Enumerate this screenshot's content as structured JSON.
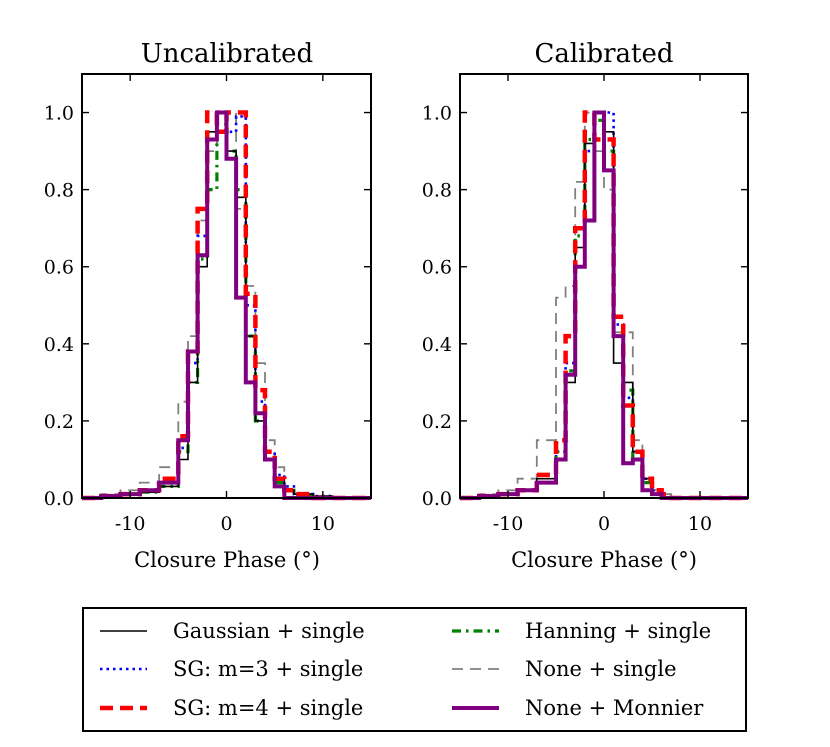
{
  "chart_data": [
    {
      "type": "histogram",
      "title": "Uncalibrated",
      "xlabel": "Closure Phase (°)",
      "ylabel": "",
      "xlim": [
        -15,
        15
      ],
      "ylim": [
        0,
        1.1
      ],
      "xticks": [
        -10,
        0,
        10
      ],
      "xtick_labels": [
        "-10",
        "0",
        "10"
      ],
      "yticks": [
        0.0,
        0.2,
        0.4,
        0.6,
        0.8,
        1.0
      ],
      "ytick_labels": [
        "0.0",
        "0.2",
        "0.4",
        "0.6",
        "0.8",
        "1.0"
      ],
      "series": [
        {
          "key": "gaussian",
          "bin_edges": [
            -15,
            -13,
            -11,
            -9,
            -7,
            -5,
            -4,
            -3,
            -2,
            -1,
            0,
            1,
            2,
            3,
            4,
            5,
            6,
            7,
            9,
            11,
            13,
            15
          ],
          "values": [
            0.0,
            0.005,
            0.01,
            0.015,
            0.03,
            0.1,
            0.3,
            0.6,
            0.95,
            1.0,
            0.9,
            0.78,
            0.42,
            0.2,
            0.1,
            0.05,
            0.02,
            0.01,
            0.005,
            0.0,
            0.0
          ]
        },
        {
          "key": "sg3",
          "bin_edges": [
            -15,
            -13,
            -11,
            -9,
            -7,
            -5,
            -4,
            -3,
            -2,
            -1,
            0,
            1,
            2,
            3,
            4,
            5,
            6,
            7,
            9,
            11,
            13,
            15
          ],
          "values": [
            0.0,
            0.005,
            0.01,
            0.02,
            0.04,
            0.13,
            0.35,
            0.68,
            0.93,
            1.0,
            0.95,
            0.99,
            0.5,
            0.25,
            0.12,
            0.06,
            0.03,
            0.01,
            0.005,
            0.0,
            0.0
          ]
        },
        {
          "key": "sg4",
          "bin_edges": [
            -15,
            -13,
            -11,
            -9,
            -7,
            -5,
            -4,
            -3,
            -2,
            -1,
            0,
            1,
            2,
            3,
            4,
            5,
            6,
            7,
            9,
            11,
            13,
            15
          ],
          "values": [
            0.0,
            0.005,
            0.01,
            0.02,
            0.05,
            0.16,
            0.38,
            0.75,
            1.0,
            0.95,
            1.0,
            1.0,
            0.53,
            0.28,
            0.12,
            0.05,
            0.02,
            0.01,
            0.0,
            0.0,
            0.0
          ]
        },
        {
          "key": "hanning",
          "bin_edges": [
            -15,
            -13,
            -11,
            -9,
            -7,
            -5,
            -4,
            -3,
            -2,
            -1,
            0,
            1,
            2,
            3,
            4,
            5,
            6,
            7,
            9,
            11,
            13,
            15
          ],
          "values": [
            0.0,
            0.005,
            0.01,
            0.015,
            0.03,
            0.12,
            0.3,
            0.62,
            0.8,
            0.97,
            0.9,
            0.8,
            0.42,
            0.2,
            0.1,
            0.04,
            0.02,
            0.005,
            0.0,
            0.0,
            0.0
          ]
        },
        {
          "key": "none_single",
          "bin_edges": [
            -15,
            -13,
            -11,
            -9,
            -7,
            -5,
            -4,
            -3,
            -2,
            -1,
            0,
            1,
            2,
            3,
            4,
            5,
            6,
            7,
            9,
            11,
            13,
            15
          ],
          "values": [
            0.0,
            0.01,
            0.02,
            0.04,
            0.08,
            0.25,
            0.42,
            0.72,
            0.9,
            0.95,
            1.0,
            0.75,
            0.55,
            0.35,
            0.15,
            0.08,
            0.02,
            0.01,
            0.0,
            0.0,
            0.0
          ]
        },
        {
          "key": "monnier",
          "bin_edges": [
            -15,
            -13,
            -11,
            -9,
            -7,
            -5,
            -4,
            -3,
            -2,
            -1,
            0,
            1,
            2,
            3,
            4,
            5,
            6,
            7,
            9,
            11,
            13,
            15
          ],
          "values": [
            0.0,
            0.005,
            0.01,
            0.02,
            0.04,
            0.15,
            0.38,
            0.63,
            0.93,
            1.0,
            0.88,
            0.52,
            0.3,
            0.22,
            0.1,
            0.03,
            0.0,
            0.0,
            0.0,
            0.0,
            0.0
          ]
        }
      ]
    },
    {
      "type": "histogram",
      "title": "Calibrated",
      "xlabel": "Closure Phase (°)",
      "ylabel": "",
      "xlim": [
        -15,
        15
      ],
      "ylim": [
        0,
        1.1
      ],
      "xticks": [
        -10,
        0,
        10
      ],
      "xtick_labels": [
        "-10",
        "0",
        "10"
      ],
      "yticks": [
        0.0,
        0.2,
        0.4,
        0.6,
        0.8,
        1.0
      ],
      "ytick_labels": [
        "0.0",
        "0.2",
        "0.4",
        "0.6",
        "0.8",
        "1.0"
      ],
      "series": [
        {
          "key": "gaussian",
          "bin_edges": [
            -15,
            -13,
            -11,
            -9,
            -7,
            -5,
            -4,
            -3,
            -2,
            -1,
            0,
            1,
            2,
            3,
            4,
            5,
            6,
            7,
            9,
            11,
            13,
            15
          ],
          "values": [
            0.0,
            0.005,
            0.01,
            0.02,
            0.05,
            0.1,
            0.3,
            0.65,
            0.92,
            1.0,
            0.95,
            0.35,
            0.3,
            0.12,
            0.05,
            0.01,
            0.0,
            0.0,
            0.0,
            0.0,
            0.0
          ]
        },
        {
          "key": "sg3",
          "bin_edges": [
            -15,
            -13,
            -11,
            -9,
            -7,
            -5,
            -4,
            -3,
            -2,
            -1,
            0,
            1,
            2,
            3,
            4,
            5,
            6,
            7,
            9,
            11,
            13,
            15
          ],
          "values": [
            0.0,
            0.005,
            0.01,
            0.02,
            0.04,
            0.12,
            0.35,
            0.6,
            0.9,
            1.0,
            1.0,
            0.45,
            0.26,
            0.12,
            0.05,
            0.02,
            0.0,
            0.0,
            0.0,
            0.0,
            0.0
          ]
        },
        {
          "key": "sg4",
          "bin_edges": [
            -15,
            -13,
            -11,
            -9,
            -7,
            -5,
            -4,
            -3,
            -2,
            -1,
            0,
            1,
            2,
            3,
            4,
            5,
            6,
            7,
            9,
            11,
            13,
            15
          ],
          "values": [
            0.0,
            0.005,
            0.01,
            0.02,
            0.06,
            0.15,
            0.42,
            0.7,
            1.0,
            0.93,
            0.93,
            0.47,
            0.24,
            0.12,
            0.05,
            0.02,
            0.01,
            0.0,
            0.0,
            0.0,
            0.0
          ]
        },
        {
          "key": "hanning",
          "bin_edges": [
            -15,
            -13,
            -11,
            -9,
            -7,
            -5,
            -4,
            -3,
            -2,
            -1,
            0,
            1,
            2,
            3,
            4,
            5,
            6,
            7,
            9,
            11,
            13,
            15
          ],
          "values": [
            0.0,
            0.005,
            0.01,
            0.02,
            0.04,
            0.12,
            0.33,
            0.68,
            0.93,
            0.98,
            0.9,
            0.42,
            0.28,
            0.1,
            0.04,
            0.01,
            0.0,
            0.0,
            0.0,
            0.0,
            0.0
          ]
        },
        {
          "key": "none_single",
          "bin_edges": [
            -15,
            -13,
            -11,
            -9,
            -7,
            -5,
            -4,
            -3,
            -2,
            -1,
            0,
            1,
            2,
            3,
            4,
            5,
            6,
            7,
            9,
            11,
            13,
            15
          ],
          "values": [
            0.0,
            0.01,
            0.02,
            0.05,
            0.15,
            0.52,
            0.55,
            0.82,
            1.0,
            0.9,
            0.8,
            0.43,
            0.43,
            0.15,
            0.05,
            0.02,
            0.01,
            0.0,
            0.0,
            0.0,
            0.0
          ]
        },
        {
          "key": "monnier",
          "bin_edges": [
            -15,
            -13,
            -11,
            -9,
            -7,
            -5,
            -4,
            -3,
            -2,
            -1,
            0,
            1,
            2,
            3,
            4,
            5,
            6,
            7,
            9,
            11,
            13,
            15
          ],
          "values": [
            0.0,
            0.005,
            0.01,
            0.02,
            0.04,
            0.1,
            0.32,
            0.6,
            0.72,
            1.0,
            0.85,
            0.42,
            0.09,
            0.1,
            0.02,
            0.01,
            0.0,
            0.0,
            0.0,
            0.0,
            0.0
          ]
        }
      ]
    }
  ],
  "legend": {
    "location": "below",
    "entries": [
      {
        "key": "gaussian",
        "label": "Gaussian + single",
        "color": "#000000",
        "width": 1.6,
        "dash": ""
      },
      {
        "key": "sg3",
        "label": "SG: m=3 + single",
        "color": "#0000ff",
        "width": 2.6,
        "dash": "2.5,4"
      },
      {
        "key": "sg4",
        "label": "SG: m=4 + single",
        "color": "#ff0000",
        "width": 4.5,
        "dash": "13,7"
      },
      {
        "key": "hanning",
        "label": "Hanning + single",
        "color": "#008000",
        "width": 3.2,
        "dash": "9,5,2.5,5"
      },
      {
        "key": "none_single",
        "label": "None + single",
        "color": "#808080",
        "width": 1.8,
        "dash": "11,7"
      },
      {
        "key": "monnier",
        "label": "None + Monnier",
        "color": "#800080",
        "width": 4.0,
        "dash": ""
      }
    ]
  }
}
